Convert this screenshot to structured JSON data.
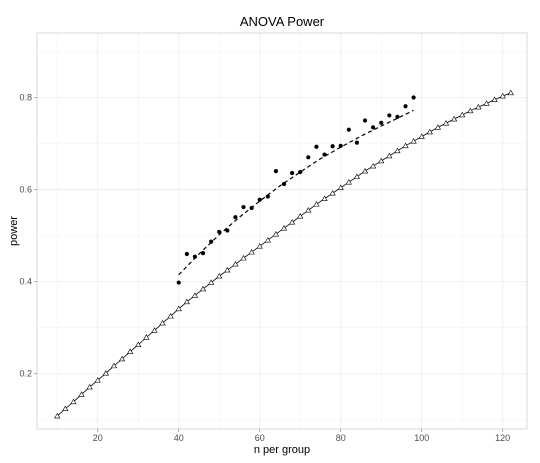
{
  "chart_data": {
    "type": "scatter",
    "title": "ANOVA Power",
    "xlabel": "n per group",
    "ylabel": "power",
    "xlim": [
      5,
      126
    ],
    "ylim": [
      0.08,
      0.94
    ],
    "x_ticks": [
      20,
      40,
      60,
      80,
      100,
      120
    ],
    "y_ticks": [
      0.2,
      0.4,
      0.6,
      0.8
    ],
    "grid": true,
    "legend": "none",
    "series": [
      {
        "marker": "triangle-open",
        "style": "points+line",
        "x": [
          10,
          12,
          14,
          16,
          18,
          20,
          22,
          24,
          26,
          28,
          30,
          32,
          34,
          36,
          38,
          40,
          42,
          44,
          46,
          48,
          50,
          52,
          54,
          56,
          58,
          60,
          62,
          64,
          66,
          68,
          70,
          72,
          74,
          76,
          78,
          80,
          82,
          84,
          86,
          88,
          90,
          92,
          94,
          96,
          98,
          100,
          102,
          104,
          106,
          108,
          110,
          112,
          114,
          116,
          118,
          120,
          122
        ],
        "y": [
          0.108,
          0.124,
          0.139,
          0.155,
          0.171,
          0.186,
          0.201,
          0.217,
          0.232,
          0.248,
          0.263,
          0.279,
          0.294,
          0.31,
          0.325,
          0.341,
          0.356,
          0.37,
          0.384,
          0.398,
          0.412,
          0.425,
          0.438,
          0.451,
          0.464,
          0.477,
          0.49,
          0.503,
          0.516,
          0.529,
          0.542,
          0.555,
          0.568,
          0.58,
          0.592,
          0.604,
          0.616,
          0.628,
          0.64,
          0.651,
          0.662,
          0.673,
          0.684,
          0.695,
          0.705,
          0.715,
          0.725,
          0.735,
          0.744,
          0.753,
          0.762,
          0.771,
          0.779,
          0.787,
          0.795,
          0.803,
          0.81
        ]
      },
      {
        "marker": "filled-circle",
        "style": "points",
        "x": [
          40,
          42,
          44,
          46,
          48,
          50,
          52,
          54,
          56,
          58,
          60,
          62,
          64,
          66,
          68,
          70,
          72,
          74,
          76,
          78,
          80,
          82,
          84,
          86,
          88,
          90,
          92,
          94,
          96,
          98
        ],
        "y": [
          0.398,
          0.46,
          0.454,
          0.462,
          0.487,
          0.508,
          0.511,
          0.54,
          0.562,
          0.56,
          0.578,
          0.585,
          0.64,
          0.612,
          0.636,
          0.638,
          0.67,
          0.693,
          0.676,
          0.694,
          0.695,
          0.73,
          0.702,
          0.75,
          0.735,
          0.745,
          0.761,
          0.758,
          0.781,
          0.8
        ]
      },
      {
        "marker": "none",
        "style": "dashed-line",
        "x": [
          40,
          45,
          50,
          55,
          60,
          65,
          70,
          75,
          80,
          85,
          90,
          95,
          98
        ],
        "y": [
          0.415,
          0.46,
          0.502,
          0.54,
          0.575,
          0.608,
          0.638,
          0.667,
          0.692,
          0.716,
          0.738,
          0.759,
          0.772
        ]
      }
    ]
  }
}
